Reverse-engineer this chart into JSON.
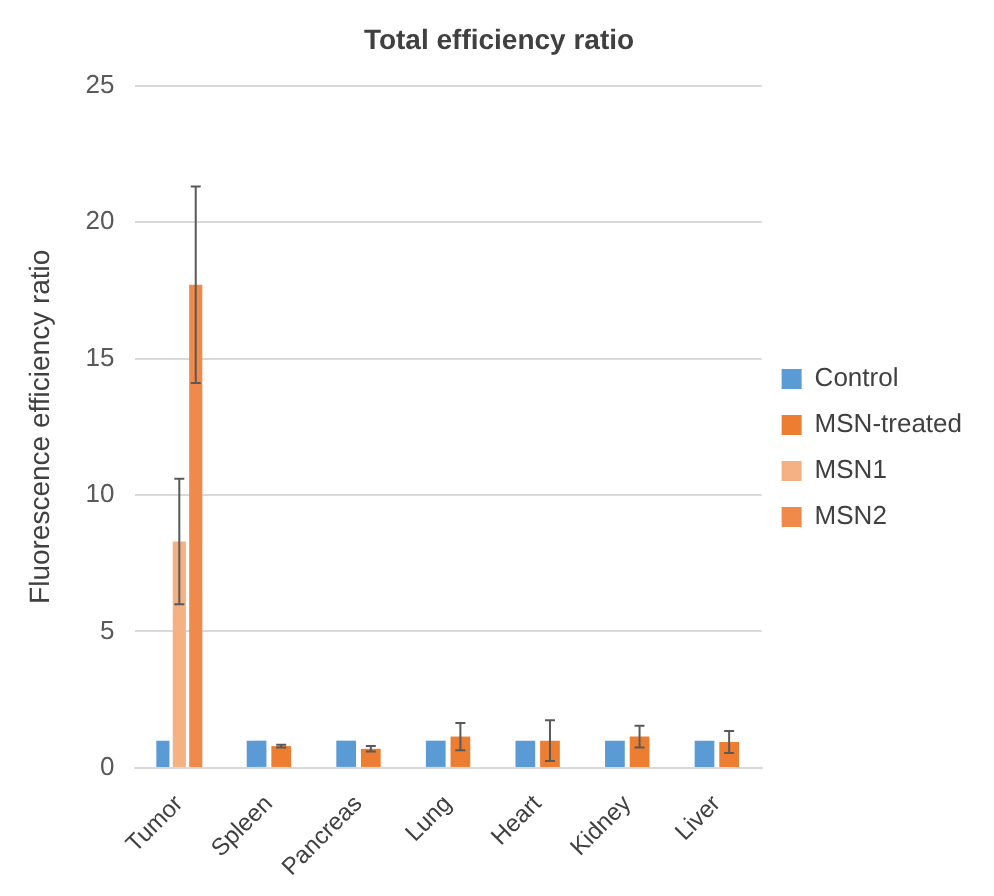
{
  "chart_data": {
    "type": "bar",
    "title": "Total efficiency ratio",
    "ylabel": "Fluorescence efficiency ratio",
    "categories": [
      "Tumor",
      "Spleen",
      "Pancreas",
      "Lung",
      "Heart",
      "Kidney",
      "Liver"
    ],
    "series": [
      {
        "name": "Control",
        "color": "#5b9bd5",
        "values": [
          1,
          1,
          1,
          1,
          1,
          1,
          1
        ]
      },
      {
        "name": "MSN-treated",
        "color": "#ed7d31",
        "values": [
          null,
          0.8,
          0.7,
          1.15,
          1.0,
          1.15,
          0.95
        ],
        "errors": [
          null,
          0.05,
          0.1,
          0.5,
          0.75,
          0.4,
          0.4
        ]
      },
      {
        "name": "MSN1",
        "color": "#f4b183",
        "values": [
          8.3,
          null,
          null,
          null,
          null,
          null,
          null
        ],
        "errors": [
          2.3,
          null,
          null,
          null,
          null,
          null,
          null
        ]
      },
      {
        "name": "MSN2",
        "color": "#f08a4b",
        "values": [
          17.7,
          null,
          null,
          null,
          null,
          null,
          null
        ],
        "errors": [
          3.6,
          null,
          null,
          null,
          null,
          null,
          null
        ]
      }
    ],
    "ylim": [
      0,
      25
    ],
    "yticks": [
      0,
      5,
      10,
      15,
      20,
      25
    ],
    "grid": "y",
    "legend": "right"
  }
}
